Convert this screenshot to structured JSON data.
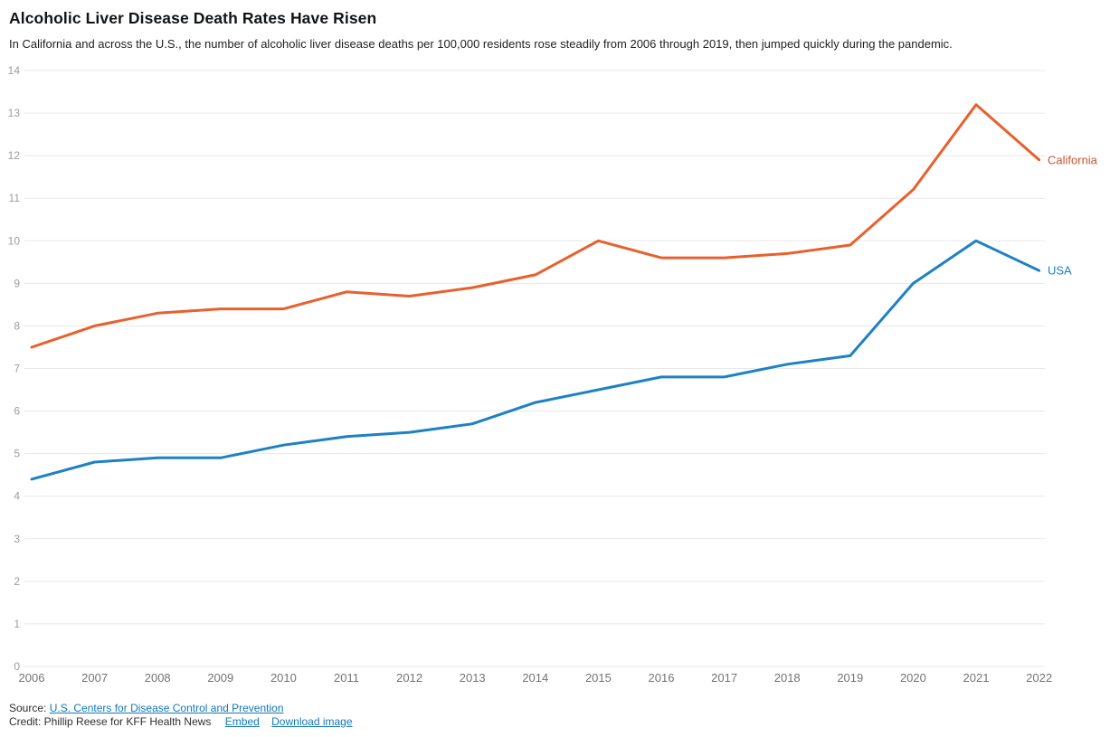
{
  "header": {
    "title": "Alcoholic Liver Disease Death Rates Have Risen",
    "subtitle": "In California and across the U.S., the number of alcoholic liver disease deaths per 100,000 residents rose steadily from 2006 through 2019, then jumped quickly during the pandemic."
  },
  "chart_data": {
    "type": "line",
    "title": "Alcoholic Liver Disease Death Rates Have Risen",
    "xlabel": "",
    "ylabel": "",
    "x": [
      2006,
      2007,
      2008,
      2009,
      2010,
      2011,
      2012,
      2013,
      2014,
      2015,
      2016,
      2017,
      2018,
      2019,
      2020,
      2021,
      2022
    ],
    "series": [
      {
        "name": "California",
        "color": "#e8602c",
        "label_color": "#c85633",
        "values": [
          7.5,
          8.0,
          8.3,
          8.4,
          8.4,
          8.8,
          8.7,
          8.9,
          9.2,
          10.0,
          9.6,
          9.6,
          9.7,
          9.9,
          11.2,
          13.2,
          11.9
        ]
      },
      {
        "name": "USA",
        "color": "#1d81c4",
        "label_color": "#1d81c4",
        "values": [
          4.4,
          4.8,
          4.9,
          4.9,
          5.2,
          5.4,
          5.5,
          5.7,
          6.2,
          6.5,
          6.8,
          6.8,
          7.1,
          7.3,
          9.0,
          10.0,
          9.3
        ]
      }
    ],
    "ylim": [
      0,
      14
    ],
    "ytick_step": 1,
    "grid": true,
    "legend_position": "line-end-labels",
    "grid_color": "#e8e8e8",
    "ytick_color": "#9d9d9d",
    "xtick_color": "#737373"
  },
  "footer": {
    "source_prefix": "Source:",
    "source_link": "U.S. Centers for Disease Control and Prevention",
    "credit_text": "Credit: Phillip Reese for KFF Health News",
    "embed_link": "Embed",
    "download_link": "Download image"
  }
}
